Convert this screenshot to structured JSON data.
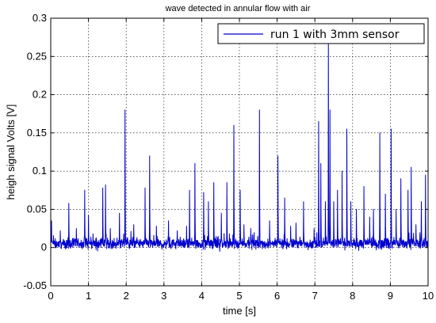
{
  "chart_data": {
    "type": "line",
    "title": "wave detected in annular flow with air",
    "xlabel": "time [s]",
    "ylabel": "heigh signal Volts [V]",
    "xlim": [
      0,
      10
    ],
    "ylim": [
      -0.05,
      0.3
    ],
    "xticks": [
      0,
      1,
      2,
      3,
      4,
      5,
      6,
      7,
      8,
      9,
      10
    ],
    "yticks": [
      -0.05,
      0,
      0.05,
      0.1,
      0.15,
      0.2,
      0.25,
      0.3
    ],
    "ytick_labels": [
      "-0.05",
      "0",
      "0.05",
      "0.1",
      "0.15",
      "0.2",
      "0.25",
      "0.3"
    ],
    "grid": true,
    "legend_position": "top-right",
    "baseline": 0.005,
    "noise_amplitude": 0.006,
    "series": [
      {
        "name": "run 1 with 3mm sensor",
        "color": "#0000cc",
        "peaks": [
          {
            "x": 0.02,
            "y": 0.035
          },
          {
            "x": 0.25,
            "y": 0.022
          },
          {
            "x": 0.48,
            "y": 0.058
          },
          {
            "x": 0.68,
            "y": 0.025
          },
          {
            "x": 0.9,
            "y": 0.075
          },
          {
            "x": 1.0,
            "y": 0.042
          },
          {
            "x": 1.12,
            "y": 0.018
          },
          {
            "x": 1.38,
            "y": 0.078
          },
          {
            "x": 1.45,
            "y": 0.082
          },
          {
            "x": 1.58,
            "y": 0.025
          },
          {
            "x": 1.82,
            "y": 0.045
          },
          {
            "x": 1.97,
            "y": 0.18
          },
          {
            "x": 2.2,
            "y": 0.03
          },
          {
            "x": 2.5,
            "y": 0.078
          },
          {
            "x": 2.62,
            "y": 0.12
          },
          {
            "x": 2.8,
            "y": 0.028
          },
          {
            "x": 3.12,
            "y": 0.035
          },
          {
            "x": 3.35,
            "y": 0.022
          },
          {
            "x": 3.6,
            "y": 0.028
          },
          {
            "x": 3.68,
            "y": 0.075
          },
          {
            "x": 3.82,
            "y": 0.11
          },
          {
            "x": 4.05,
            "y": 0.072
          },
          {
            "x": 4.18,
            "y": 0.06
          },
          {
            "x": 4.32,
            "y": 0.085
          },
          {
            "x": 4.52,
            "y": 0.045
          },
          {
            "x": 4.67,
            "y": 0.085
          },
          {
            "x": 4.85,
            "y": 0.16
          },
          {
            "x": 5.02,
            "y": 0.075
          },
          {
            "x": 5.12,
            "y": 0.03
          },
          {
            "x": 5.3,
            "y": 0.025
          },
          {
            "x": 5.53,
            "y": 0.18
          },
          {
            "x": 5.8,
            "y": 0.035
          },
          {
            "x": 6.02,
            "y": 0.12
          },
          {
            "x": 6.2,
            "y": 0.065
          },
          {
            "x": 6.36,
            "y": 0.028
          },
          {
            "x": 6.5,
            "y": 0.032
          },
          {
            "x": 6.7,
            "y": 0.06
          },
          {
            "x": 6.98,
            "y": 0.025
          },
          {
            "x": 7.1,
            "y": 0.165
          },
          {
            "x": 7.16,
            "y": 0.11
          },
          {
            "x": 7.28,
            "y": 0.06
          },
          {
            "x": 7.36,
            "y": 0.275
          },
          {
            "x": 7.4,
            "y": 0.18
          },
          {
            "x": 7.5,
            "y": 0.06
          },
          {
            "x": 7.6,
            "y": 0.075
          },
          {
            "x": 7.72,
            "y": 0.1
          },
          {
            "x": 7.85,
            "y": 0.155
          },
          {
            "x": 7.95,
            "y": 0.06
          },
          {
            "x": 8.1,
            "y": 0.05
          },
          {
            "x": 8.3,
            "y": 0.08
          },
          {
            "x": 8.45,
            "y": 0.04
          },
          {
            "x": 8.55,
            "y": 0.05
          },
          {
            "x": 8.72,
            "y": 0.15
          },
          {
            "x": 8.87,
            "y": 0.07
          },
          {
            "x": 9.02,
            "y": 0.155
          },
          {
            "x": 9.15,
            "y": 0.05
          },
          {
            "x": 9.28,
            "y": 0.09
          },
          {
            "x": 9.47,
            "y": 0.075
          },
          {
            "x": 9.55,
            "y": 0.105
          },
          {
            "x": 9.68,
            "y": 0.03
          },
          {
            "x": 9.82,
            "y": 0.06
          },
          {
            "x": 9.93,
            "y": 0.095
          }
        ]
      }
    ]
  }
}
